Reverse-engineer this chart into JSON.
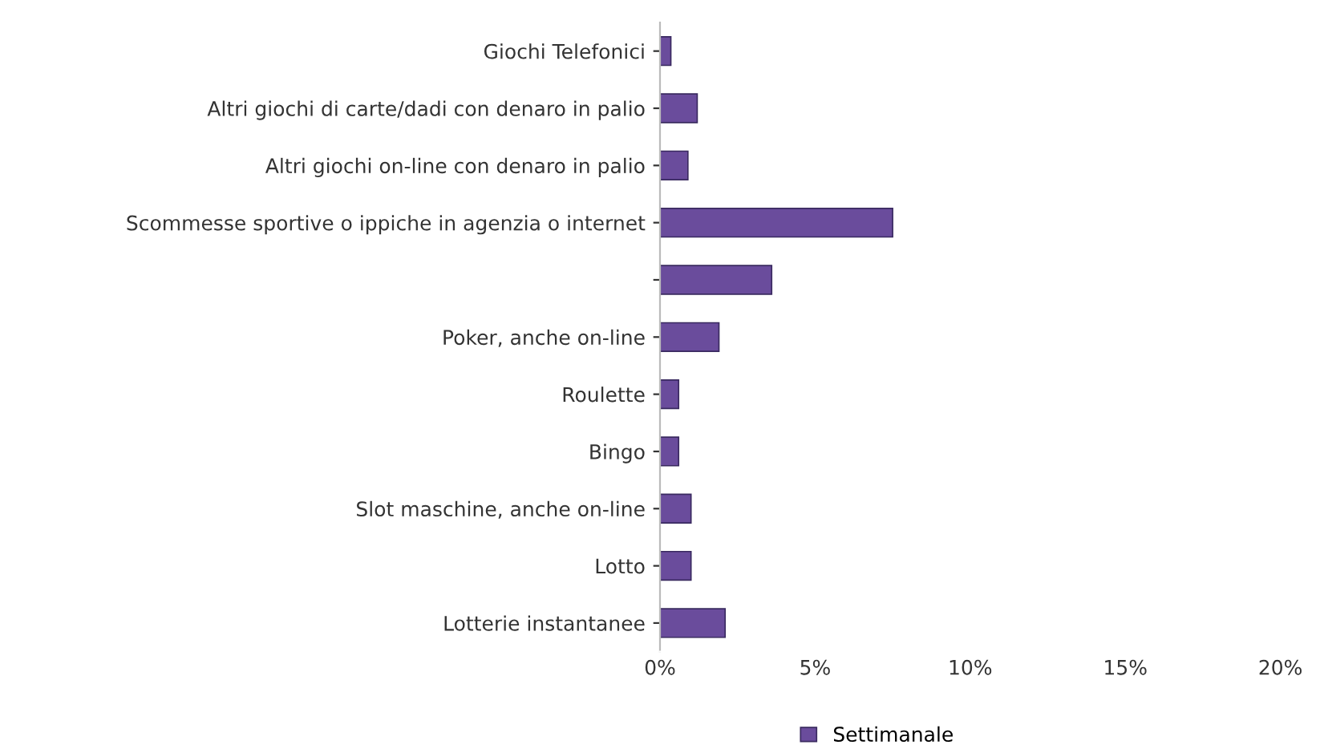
{
  "chart_data": {
    "type": "bar",
    "orientation": "horizontal",
    "categories": [
      "Giochi Telefonici",
      "Altri giochi di carte/dadi con denaro in palio",
      "Altri giochi on-line con denaro in palio",
      "Scommesse sportive o ippiche in agenzia o internet",
      null,
      "Poker, anche on-line",
      "Roulette",
      "Bingo",
      "Slot maschine, anche on-line",
      "Lotto",
      "Lotterie instantanee"
    ],
    "series": [
      {
        "name": "Settimanale",
        "color": "#6a4c9c",
        "values": [
          0.35,
          1.2,
          0.9,
          7.5,
          3.6,
          1.9,
          0.6,
          0.6,
          1.0,
          1.0,
          2.1
        ]
      }
    ],
    "xlim": [
      0,
      20
    ],
    "xticks": [
      {
        "value": 0,
        "label": "0%"
      },
      {
        "value": 5,
        "label": "5%"
      },
      {
        "value": 10,
        "label": "10%"
      },
      {
        "value": 15,
        "label": "15%"
      },
      {
        "value": 20,
        "label": "20%"
      }
    ],
    "grid": false,
    "legend": "bottom"
  }
}
